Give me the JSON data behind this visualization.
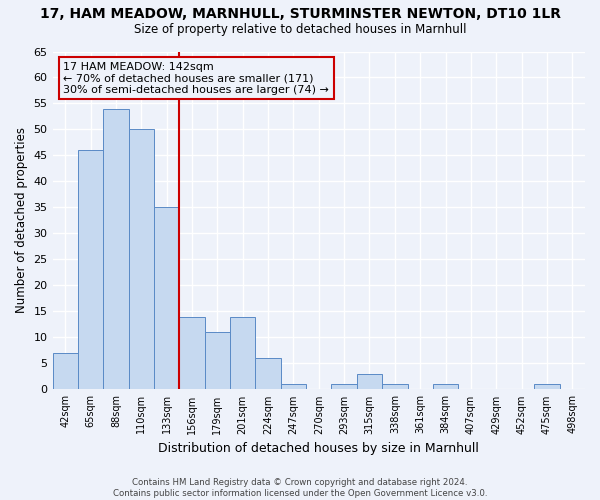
{
  "title1": "17, HAM MEADOW, MARNHULL, STURMINSTER NEWTON, DT10 1LR",
  "title2": "Size of property relative to detached houses in Marnhull",
  "xlabel": "Distribution of detached houses by size in Marnhull",
  "ylabel": "Number of detached properties",
  "categories": [
    "42sqm",
    "65sqm",
    "88sqm",
    "110sqm",
    "133sqm",
    "156sqm",
    "179sqm",
    "201sqm",
    "224sqm",
    "247sqm",
    "270sqm",
    "293sqm",
    "315sqm",
    "338sqm",
    "361sqm",
    "384sqm",
    "407sqm",
    "429sqm",
    "452sqm",
    "475sqm",
    "498sqm"
  ],
  "values": [
    7,
    46,
    54,
    50,
    35,
    14,
    11,
    14,
    6,
    1,
    0,
    1,
    3,
    1,
    0,
    1,
    0,
    0,
    0,
    1,
    0
  ],
  "bar_color": "#c6d9f0",
  "bar_edge_color": "#5a8ac6",
  "ylim": [
    0,
    65
  ],
  "yticks": [
    0,
    5,
    10,
    15,
    20,
    25,
    30,
    35,
    40,
    45,
    50,
    55,
    60,
    65
  ],
  "property_label": "17 HAM MEADOW: 142sqm",
  "annotation_line1": "← 70% of detached houses are smaller (171)",
  "annotation_line2": "30% of semi-detached houses are larger (74) →",
  "vline_position": 4.5,
  "vline_color": "#cc0000",
  "footer1": "Contains HM Land Registry data © Crown copyright and database right 2024.",
  "footer2": "Contains public sector information licensed under the Open Government Licence v3.0.",
  "background_color": "#eef2fa",
  "grid_color": "#ffffff"
}
